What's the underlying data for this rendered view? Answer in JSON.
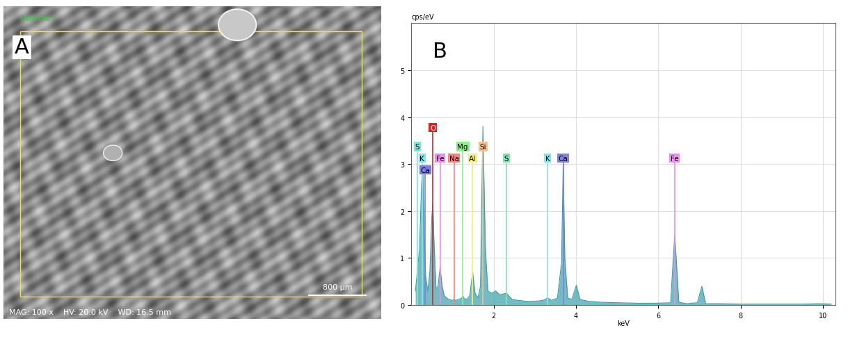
{
  "image_panel": {
    "letter": "A",
    "object_label": "Objects 7",
    "scale_bar": "800 µm",
    "info": [
      "MAG: 100 x",
      "HV: 20.0 kV",
      "WD: 16.5 mm"
    ]
  },
  "chart_data": {
    "type": "line",
    "annotations": [
      "B"
    ],
    "x_label": "keV",
    "y_label": "cps/eV",
    "x": [
      0.1,
      0.2,
      0.25,
      0.28,
      0.31,
      0.35,
      0.4,
      0.45,
      0.5,
      0.525,
      0.55,
      0.6,
      0.65,
      0.7,
      0.75,
      0.8,
      0.9,
      1.0,
      1.04,
      1.08,
      1.15,
      1.22,
      1.25,
      1.28,
      1.35,
      1.42,
      1.49,
      1.55,
      1.62,
      1.68,
      1.74,
      1.8,
      1.86,
      1.95,
      2.05,
      2.15,
      2.31,
      2.45,
      2.6,
      2.8,
      3.0,
      3.2,
      3.31,
      3.4,
      3.55,
      3.65,
      3.69,
      3.73,
      3.8,
      3.9,
      4.01,
      4.1,
      4.3,
      4.6,
      5.0,
      5.5,
      6.0,
      6.3,
      6.4,
      6.5,
      6.7,
      6.95,
      7.06,
      7.15,
      7.5,
      8.0,
      8.5,
      9.0,
      9.5,
      9.9,
      10.2
    ],
    "values": [
      0.3,
      1.2,
      2.6,
      2.9,
      1.5,
      0.6,
      0.3,
      0.7,
      1.9,
      2.15,
      1.4,
      0.35,
      0.4,
      0.8,
      0.4,
      0.2,
      0.12,
      0.1,
      0.12,
      0.1,
      0.12,
      0.14,
      0.2,
      0.14,
      0.12,
      0.2,
      0.7,
      0.25,
      0.15,
      0.4,
      3.8,
      1.2,
      0.3,
      0.25,
      0.3,
      0.22,
      0.25,
      0.12,
      0.1,
      0.08,
      0.08,
      0.1,
      0.15,
      0.1,
      0.15,
      0.9,
      3.0,
      1.0,
      0.15,
      0.12,
      0.42,
      0.12,
      0.08,
      0.06,
      0.05,
      0.04,
      0.04,
      0.05,
      1.5,
      0.06,
      0.03,
      0.05,
      0.4,
      0.03,
      0.03,
      0.02,
      0.02,
      0.02,
      0.02,
      0.03,
      0.02
    ],
    "color": "#3a9ea8",
    "element_lines": [
      {
        "label": "S",
        "x": 0.15,
        "height": 3.3,
        "color": "#7fe8d8"
      },
      {
        "label": "K",
        "x": 0.26,
        "height": 3.05,
        "color": "#7fe8e8"
      },
      {
        "label": "Ca",
        "x": 0.34,
        "height": 2.8,
        "color": "#7b7be8"
      },
      {
        "label": "O",
        "x": 0.525,
        "height": 3.7,
        "color": "#e02020"
      },
      {
        "label": "Fe",
        "x": 0.7,
        "height": 3.05,
        "color": "#f08cf0"
      },
      {
        "label": "Na",
        "x": 1.04,
        "height": 3.05,
        "color": "#ff8080"
      },
      {
        "label": "Mg",
        "x": 1.25,
        "height": 3.3,
        "color": "#90ee90"
      },
      {
        "label": "Al",
        "x": 1.49,
        "height": 3.05,
        "color": "#f8f070"
      },
      {
        "label": "Si",
        "x": 1.74,
        "height": 3.3,
        "color": "#f4c090"
      },
      {
        "label": "S",
        "x": 2.31,
        "height": 3.05,
        "color": "#80e8b0"
      },
      {
        "label": "K",
        "x": 3.31,
        "height": 3.05,
        "color": "#80e8e8"
      },
      {
        "label": "Ca",
        "x": 3.69,
        "height": 3.05,
        "color": "#8080e8"
      },
      {
        "label": "Fe",
        "x": 6.4,
        "height": 3.05,
        "color": "#f08cf0"
      }
    ],
    "xlim": [
      0,
      10.3
    ],
    "ylim": [
      0,
      6
    ],
    "xticks": [
      2,
      4,
      6,
      8,
      10
    ],
    "yticks": [
      0,
      1,
      2,
      3,
      4,
      5
    ],
    "grid": true
  }
}
